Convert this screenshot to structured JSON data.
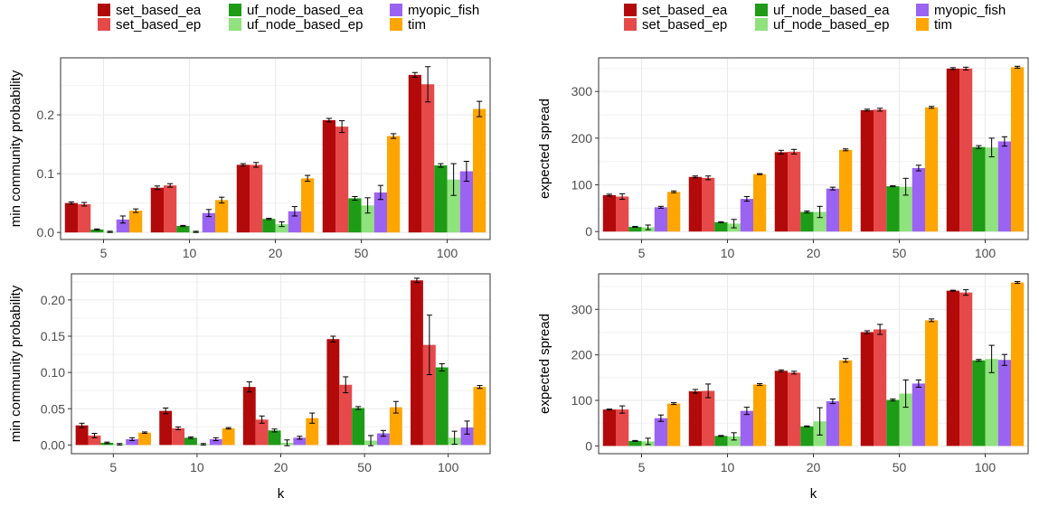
{
  "legend_left": {
    "items": [
      {
        "label": "set_based_ea",
        "color": "#b20a0a"
      },
      {
        "label": "set_based_ep",
        "color": "#e64949"
      },
      {
        "label": "uf_node_based_ea",
        "color": "#1e9b17"
      },
      {
        "label": "uf_node_based_ep",
        "color": "#8fe27d"
      },
      {
        "label": "myopic_fish",
        "color": "#9b63f2"
      },
      {
        "label": "tim",
        "color": "#ffa500"
      }
    ]
  },
  "legend_right": {
    "items": [
      {
        "label": "set_based_ea",
        "color": "#b20a0a"
      },
      {
        "label": "set_based_ep",
        "color": "#e64949"
      },
      {
        "label": "uf_node_based_ea",
        "color": "#1e9b17"
      },
      {
        "label": "uf_node_based_ep",
        "color": "#8fe27d"
      },
      {
        "label": "myopic_fish",
        "color": "#9b63f2"
      },
      {
        "label": "tim",
        "color": "#ffa500"
      }
    ]
  },
  "chart_data": [
    {
      "type": "bar",
      "categories": [
        "5",
        "10",
        "20",
        "50",
        "100"
      ],
      "ylabel": "min community probability",
      "xlabel": "",
      "ylim": [
        -0.012,
        0.297
      ],
      "yticks": [
        0.0,
        0.1,
        0.2
      ],
      "ytick_labels": [
        "0.0",
        "0.1",
        "0.2"
      ],
      "grid": true,
      "series": [
        {
          "name": "set_based_ea",
          "values": [
            0.05,
            0.076,
            0.115,
            0.191,
            0.268
          ],
          "err": [
            0.002,
            0.003,
            0.002,
            0.003,
            0.004
          ]
        },
        {
          "name": "set_based_ep",
          "values": [
            0.048,
            0.08,
            0.115,
            0.18,
            0.252
          ],
          "err": [
            0.003,
            0.003,
            0.004,
            0.01,
            0.03
          ]
        },
        {
          "name": "uf_node_based_ea",
          "values": [
            0.005,
            0.011,
            0.023,
            0.058,
            0.114
          ],
          "err": [
            0.001,
            0.001,
            0.001,
            0.003,
            0.003
          ]
        },
        {
          "name": "uf_node_based_ep",
          "values": [
            0.001,
            0.001,
            0.014,
            0.046,
            0.09
          ],
          "err": [
            0.001,
            0.001,
            0.004,
            0.013,
            0.027
          ]
        },
        {
          "name": "myopic_fish",
          "values": [
            0.022,
            0.033,
            0.036,
            0.068,
            0.104
          ],
          "err": [
            0.006,
            0.006,
            0.008,
            0.012,
            0.017
          ]
        },
        {
          "name": "tim",
          "values": [
            0.037,
            0.055,
            0.092,
            0.164,
            0.21
          ],
          "err": [
            0.003,
            0.005,
            0.005,
            0.004,
            0.013
          ]
        }
      ]
    },
    {
      "type": "bar",
      "categories": [
        "5",
        "10",
        "20",
        "50",
        "100"
      ],
      "ylabel": "expected spread",
      "xlabel": "",
      "ylim": [
        -17,
        372
      ],
      "yticks": [
        0,
        100,
        200,
        300
      ],
      "ytick_labels": [
        "0",
        "100",
        "200",
        "300"
      ],
      "grid": true,
      "series": [
        {
          "name": "set_based_ea",
          "values": [
            78,
            117,
            170,
            260,
            349
          ],
          "err": [
            2,
            2,
            4,
            2,
            2
          ]
        },
        {
          "name": "set_based_ep",
          "values": [
            75,
            115,
            171,
            261,
            349
          ],
          "err": [
            6,
            4,
            5,
            3,
            3
          ]
        },
        {
          "name": "uf_node_based_ea",
          "values": [
            10,
            20,
            42,
            97,
            181
          ],
          "err": [
            1,
            1,
            2,
            1,
            3
          ]
        },
        {
          "name": "uf_node_based_ep",
          "values": [
            9,
            17,
            42,
            96,
            180
          ],
          "err": [
            5,
            9,
            12,
            18,
            20
          ]
        },
        {
          "name": "myopic_fish",
          "values": [
            52,
            70,
            92,
            136,
            193
          ],
          "err": [
            2,
            5,
            3,
            6,
            10
          ]
        },
        {
          "name": "tim",
          "values": [
            85,
            123,
            175,
            266,
            352
          ],
          "err": [
            2,
            1,
            2,
            2,
            2
          ]
        }
      ]
    },
    {
      "type": "bar",
      "categories": [
        "5",
        "10",
        "20",
        "50",
        "100"
      ],
      "ylabel": "min community probability",
      "xlabel": "k",
      "ylim": [
        -0.012,
        0.236
      ],
      "yticks": [
        0.0,
        0.05,
        0.1,
        0.15,
        0.2
      ],
      "ytick_labels": [
        "0.00",
        "0.05",
        "0.10",
        "0.15",
        "0.20"
      ],
      "grid": true,
      "series": [
        {
          "name": "set_based_ea",
          "values": [
            0.027,
            0.047,
            0.08,
            0.146,
            0.227
          ],
          "err": [
            0.003,
            0.004,
            0.007,
            0.004,
            0.003
          ]
        },
        {
          "name": "set_based_ep",
          "values": [
            0.013,
            0.023,
            0.035,
            0.083,
            0.138
          ],
          "err": [
            0.003,
            0.002,
            0.005,
            0.011,
            0.041
          ]
        },
        {
          "name": "uf_node_based_ea",
          "values": [
            0.003,
            0.01,
            0.02,
            0.051,
            0.107
          ],
          "err": [
            0.001,
            0.001,
            0.002,
            0.002,
            0.005
          ]
        },
        {
          "name": "uf_node_based_ep",
          "values": [
            0.001,
            0.001,
            0.003,
            0.006,
            0.01
          ],
          "err": [
            0.001,
            0.001,
            0.004,
            0.007,
            0.009
          ]
        },
        {
          "name": "myopic_fish",
          "values": [
            0.008,
            0.008,
            0.01,
            0.016,
            0.024
          ],
          "err": [
            0.002,
            0.002,
            0.002,
            0.004,
            0.009
          ]
        },
        {
          "name": "tim",
          "values": [
            0.017,
            0.023,
            0.037,
            0.052,
            0.08
          ],
          "err": [
            0.001,
            0.001,
            0.007,
            0.008,
            0.002
          ]
        }
      ]
    },
    {
      "type": "bar",
      "categories": [
        "5",
        "10",
        "20",
        "50",
        "100"
      ],
      "ylabel": "expected spread",
      "xlabel": "k",
      "ylim": [
        -17,
        378
      ],
      "yticks": [
        0,
        100,
        200,
        300
      ],
      "ytick_labels": [
        "0",
        "100",
        "200",
        "300"
      ],
      "grid": true,
      "series": [
        {
          "name": "set_based_ea",
          "values": [
            80,
            120,
            165,
            250,
            341
          ],
          "err": [
            1,
            4,
            2,
            3,
            1
          ]
        },
        {
          "name": "set_based_ep",
          "values": [
            80,
            121,
            161,
            256,
            337
          ],
          "err": [
            8,
            15,
            3,
            11,
            6
          ]
        },
        {
          "name": "uf_node_based_ea",
          "values": [
            11,
            22,
            43,
            101,
            188
          ],
          "err": [
            1,
            1,
            1,
            2,
            2
          ]
        },
        {
          "name": "uf_node_based_ep",
          "values": [
            10,
            21,
            54,
            115,
            191
          ],
          "err": [
            7,
            8,
            30,
            30,
            30
          ]
        },
        {
          "name": "myopic_fish",
          "values": [
            61,
            77,
            98,
            137,
            189
          ],
          "err": [
            7,
            8,
            5,
            8,
            12
          ]
        },
        {
          "name": "tim",
          "values": [
            93,
            135,
            188,
            276,
            359
          ],
          "err": [
            2,
            2,
            4,
            3,
            2
          ]
        }
      ]
    }
  ]
}
